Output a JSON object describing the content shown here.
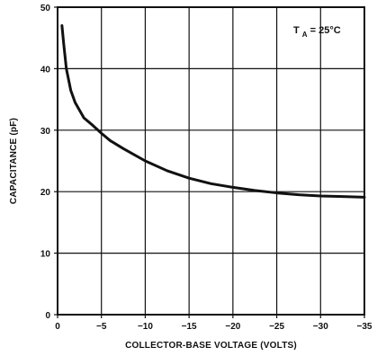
{
  "chart_data": {
    "type": "line",
    "xlabel": "COLLECTOR-BASE VOLTAGE (VOLTS)",
    "ylabel": "CAPACITANCE (pF)",
    "annotation": {
      "main": "T",
      "subscript": "A",
      "suffix": " = 25°C"
    },
    "xlim": [
      0,
      -35
    ],
    "ylim": [
      0,
      50
    ],
    "x_ticks": [
      0,
      -5,
      -10,
      -15,
      -20,
      -25,
      -30,
      -35
    ],
    "x_tick_labels": [
      "0",
      "−5",
      "−10",
      "−15",
      "−20",
      "−25",
      "−30",
      "−35"
    ],
    "y_ticks": [
      0,
      10,
      20,
      30,
      40,
      50
    ],
    "y_tick_labels": [
      "0",
      "10",
      "20",
      "30",
      "40",
      "50"
    ],
    "grid": true,
    "series": [
      {
        "x": [
          -0.5,
          -0.7,
          -1.0,
          -1.5,
          -2.0,
          -3.0,
          -4.0,
          -5.0,
          -6.0,
          -7.5,
          -10.0,
          -12.5,
          -15.0,
          -17.5,
          -20.0,
          -22.5,
          -25.0,
          -27.5,
          -30.0,
          -32.5,
          -35.0
        ],
        "y": [
          47.0,
          44.0,
          40.0,
          36.5,
          34.5,
          32.0,
          30.8,
          29.5,
          28.3,
          27.0,
          25.0,
          23.4,
          22.2,
          21.3,
          20.7,
          20.2,
          19.8,
          19.5,
          19.3,
          19.2,
          19.1
        ]
      }
    ]
  }
}
